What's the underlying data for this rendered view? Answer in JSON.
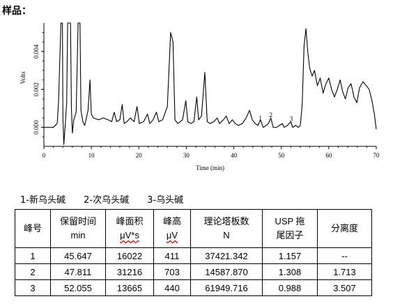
{
  "heading": "样品：",
  "chart_data": {
    "type": "line",
    "xlabel": "Time (min)",
    "ylabel": "Volts",
    "xlim": [
      0,
      70
    ],
    "ylim": [
      -0.001,
      0.0055
    ],
    "x_ticks": [
      "0",
      "10",
      "20",
      "30",
      "40",
      "50",
      "60",
      "70"
    ],
    "y_ticks": [
      "0.000",
      "0.002",
      "0.004"
    ],
    "peak_labels": [
      {
        "label": "1",
        "x": 45.6,
        "y": 0.00016
      },
      {
        "label": "2",
        "x": 47.8,
        "y": 0.00032
      },
      {
        "label": "3",
        "x": 52.1,
        "y": 0.00012
      }
    ],
    "trace": [
      [
        0,
        0
      ],
      [
        2,
        0
      ],
      [
        2.8,
        0.0002
      ],
      [
        3.1,
        0.0014
      ],
      [
        3.4,
        0.004
      ],
      [
        3.6,
        0.0055
      ],
      [
        3.9,
        0.0055
      ],
      [
        4.0,
        0.0005
      ],
      [
        4.2,
        -0.0009
      ],
      [
        4.5,
        0.0002
      ],
      [
        4.8,
        0.0013
      ],
      [
        5.0,
        0.0055
      ],
      [
        5.6,
        0.0055
      ],
      [
        5.8,
        0.001
      ],
      [
        6.0,
        -0.0003
      ],
      [
        6.3,
        0.0004
      ],
      [
        6.8,
        0.0008
      ],
      [
        7.2,
        0.0055
      ],
      [
        7.6,
        0.0055
      ],
      [
        7.8,
        0.0009
      ],
      [
        8.2,
        0.0003
      ],
      [
        8.6,
        0.0001
      ],
      [
        9.3,
        0.0009
      ],
      [
        9.7,
        0.0025
      ],
      [
        10.0,
        0.0007
      ],
      [
        10.4,
        0.0005
      ],
      [
        11.5,
        0.0004
      ],
      [
        12.5,
        0.0005
      ],
      [
        13.5,
        0.0004
      ],
      [
        14.3,
        0.0003
      ],
      [
        14.8,
        0.0008
      ],
      [
        15.3,
        0.0003
      ],
      [
        16.0,
        0.0004
      ],
      [
        16.5,
        0.0012
      ],
      [
        16.9,
        0.0002
      ],
      [
        17.5,
        0.0003
      ],
      [
        18.2,
        0.0005
      ],
      [
        19.0,
        0.0003
      ],
      [
        19.6,
        0.0011
      ],
      [
        20.1,
        0.0002
      ],
      [
        21.0,
        0.0003
      ],
      [
        21.8,
        0.0007
      ],
      [
        22.3,
        0.0002
      ],
      [
        23.0,
        0.0004
      ],
      [
        23.7,
        0.0008
      ],
      [
        24.2,
        0.0003
      ],
      [
        25.0,
        0.0004
      ],
      [
        26.0,
        0.0011
      ],
      [
        26.7,
        0.005
      ],
      [
        27.2,
        0.0045
      ],
      [
        27.6,
        0.0004
      ],
      [
        28.2,
        0.0002
      ],
      [
        29.2,
        0.0004
      ],
      [
        29.9,
        0.0014
      ],
      [
        30.3,
        0.0003
      ],
      [
        31.0,
        0.0002
      ],
      [
        31.6,
        0.0003
      ],
      [
        32.2,
        0.0016
      ],
      [
        32.6,
        0.0004
      ],
      [
        33.2,
        0.0006
      ],
      [
        33.9,
        0.0029
      ],
      [
        34.4,
        0.0003
      ],
      [
        35.0,
        0.0002
      ],
      [
        35.8,
        0.0003
      ],
      [
        36.5,
        0.0005
      ],
      [
        37.0,
        0.0002
      ],
      [
        37.8,
        0.0004
      ],
      [
        38.4,
        0.0006
      ],
      [
        39.0,
        0.0002
      ],
      [
        39.7,
        0.0004
      ],
      [
        40.3,
        0.0002
      ],
      [
        41.0,
        0.0001
      ],
      [
        41.8,
        0.0002
      ],
      [
        42.6,
        0.0005
      ],
      [
        43.3,
        0.0009
      ],
      [
        43.9,
        0.0004
      ],
      [
        44.5,
        0.0002
      ],
      [
        45.1,
        0.0001
      ],
      [
        45.6,
        0.0004
      ],
      [
        46.2,
        0.0
      ],
      [
        46.8,
        0.0001
      ],
      [
        47.3,
        0.0002
      ],
      [
        47.8,
        0.0005
      ],
      [
        48.3,
        0.0
      ],
      [
        49.0,
        0.0
      ],
      [
        49.6,
        0.0001
      ],
      [
        50.2,
        0.0002
      ],
      [
        50.6,
        0.0
      ],
      [
        51.3,
        0.0001
      ],
      [
        52.0,
        0.0003
      ],
      [
        52.4,
        0.0
      ],
      [
        53.0,
        0.0001
      ],
      [
        53.6,
        0.0
      ],
      [
        54.0,
        0.0001
      ],
      [
        54.4,
        0.0012
      ],
      [
        54.8,
        0.0043
      ],
      [
        55.2,
        0.0052
      ],
      [
        55.6,
        0.0039
      ],
      [
        56.0,
        0.0031
      ],
      [
        56.5,
        0.0027
      ],
      [
        57.0,
        0.003
      ],
      [
        57.6,
        0.0022
      ],
      [
        58.2,
        0.0026
      ],
      [
        58.8,
        0.0018
      ],
      [
        59.4,
        0.0023
      ],
      [
        60.0,
        0.0026
      ],
      [
        60.6,
        0.002
      ],
      [
        61.2,
        0.0016
      ],
      [
        61.8,
        0.002
      ],
      [
        62.4,
        0.0025
      ],
      [
        62.9,
        0.0019
      ],
      [
        63.5,
        0.0015
      ],
      [
        64.1,
        0.0021
      ],
      [
        64.7,
        0.0023
      ],
      [
        65.3,
        0.0016
      ],
      [
        65.9,
        0.0013
      ],
      [
        66.5,
        0.0021
      ],
      [
        67.2,
        0.0024
      ],
      [
        67.9,
        0.0022
      ],
      [
        68.5,
        0.002
      ],
      [
        69.1,
        0.0014
      ],
      [
        69.6,
        0.0007
      ],
      [
        70.0,
        -0.0001
      ]
    ]
  },
  "legend": [
    "1-新乌头碱",
    "2-次乌头碱",
    "3-乌头碱"
  ],
  "table": {
    "headers": [
      [
        "峰号"
      ],
      [
        "保留时间",
        "min"
      ],
      [
        "峰面积",
        "μV*s"
      ],
      [
        "峰高",
        "μV"
      ],
      [
        "理论塔板数",
        "N"
      ],
      [
        "USP 拖",
        "尾因子"
      ],
      [
        "分离度"
      ]
    ],
    "rows": [
      [
        "1",
        "45.647",
        "16022",
        "411",
        "37421.342",
        "1.157",
        "--"
      ],
      [
        "2",
        "47.811",
        "31216",
        "703",
        "14587.870",
        "1.308",
        "1.713"
      ],
      [
        "3",
        "52.055",
        "13665",
        "440",
        "61949.716",
        "0.988",
        "3.507"
      ]
    ]
  }
}
